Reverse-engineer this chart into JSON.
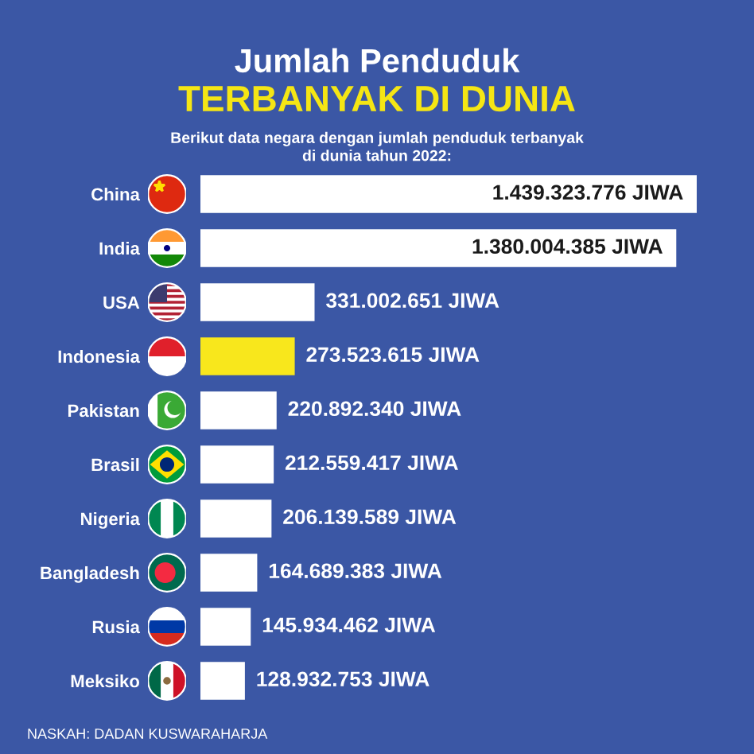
{
  "chart_data": {
    "type": "bar",
    "orientation": "horizontal",
    "title": "Jumlah Penduduk",
    "subtitle": "TERBANYAK DI DUNIA",
    "annotations": [
      "Berikut data negara dengan jumlah penduduk terbanyak\ndi dunia tahun 2022:",
      "NASKAH: DADAN KUSWARAHARJA"
    ],
    "categories": [
      "China",
      "India",
      "USA",
      "Indonesia",
      "Pakistan",
      "Brasil",
      "Nigeria",
      "Bangladesh",
      "Rusia",
      "Meksiko"
    ],
    "values": [
      1439323776,
      1380004385,
      331002651,
      273523615,
      220892340,
      212559417,
      206139589,
      164689383,
      145934462,
      128932753
    ],
    "colors": [
      "#ffffff",
      "#ffffff",
      "#ffffff",
      "#f8e71c",
      "#ffffff",
      "#ffffff",
      "#ffffff",
      "#ffffff",
      "#ffffff",
      "#ffffff"
    ],
    "value_labels": [
      "1.439.323.776 JIWA",
      "1.380.004.385 JIWA",
      "331.002.651 JIWA",
      "273.523.615 JIWA",
      "220.892.340 JIWA",
      "212.559.417 JIWA",
      "206.139.589 JIWA",
      "164.689.383 JIWA",
      "145.934.462 JIWA",
      "128.932.753 JIWA"
    ],
    "tick_labels": "y"
  }
}
